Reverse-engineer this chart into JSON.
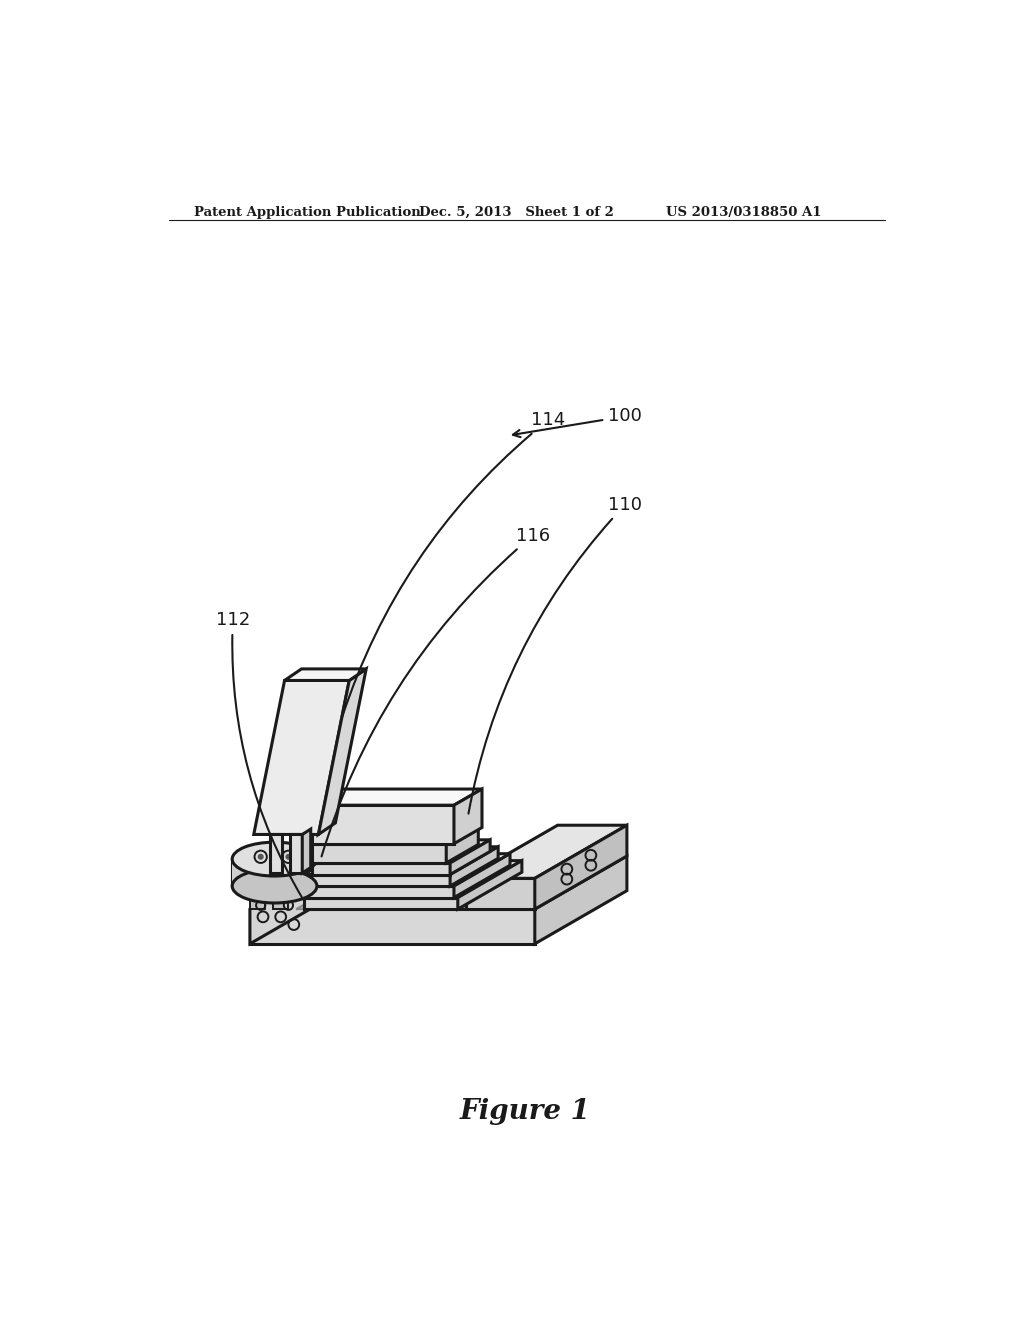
{
  "bg_color": "#ffffff",
  "line_color": "#1a1a1a",
  "header_left": "Patent Application Publication",
  "header_mid": "Dec. 5, 2013   Sheet 1 of 2",
  "header_right": "US 2013/0318850 A1",
  "figure_label": "Figure 1"
}
